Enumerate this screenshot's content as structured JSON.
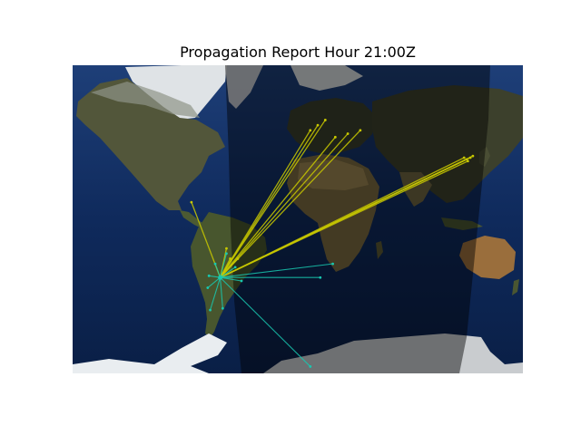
{
  "figure": {
    "title": "Propagation Report Hour 21:00Z"
  },
  "map": {
    "projection": "equirectangular",
    "lon_range": [
      -180,
      180
    ],
    "lat_range": [
      -90,
      90
    ],
    "basemap": "satellite (blue marble)",
    "night_terminator": true,
    "colors": {
      "ocean": "#0e2a5a",
      "land": "#5a5a38",
      "ice": "#f2f4f6",
      "night_shade": "#000000",
      "path_yellow": "#c8c800",
      "path_cyan": "#18c8b0"
    }
  },
  "chart_data": {
    "type": "propagation-paths",
    "hub": {
      "lon": -62,
      "lat": -34
    },
    "paths": [
      {
        "to": {
          "lon": 22,
          "lat": 58
        },
        "color": "yellow"
      },
      {
        "to": {
          "lon": 16,
          "lat": 55
        },
        "color": "yellow"
      },
      {
        "to": {
          "lon": 10,
          "lat": 52
        },
        "color": "yellow"
      },
      {
        "to": {
          "lon": 30,
          "lat": 48
        },
        "color": "yellow"
      },
      {
        "to": {
          "lon": 40,
          "lat": 50
        },
        "color": "yellow"
      },
      {
        "to": {
          "lon": 50,
          "lat": 52
        },
        "color": "yellow"
      },
      {
        "to": {
          "lon": 133,
          "lat": 36
        },
        "color": "yellow"
      },
      {
        "to": {
          "lon": 135,
          "lat": 35
        },
        "color": "yellow"
      },
      {
        "to": {
          "lon": 138,
          "lat": 36
        },
        "color": "yellow"
      },
      {
        "to": {
          "lon": 140,
          "lat": 37
        },
        "color": "yellow"
      },
      {
        "to": {
          "lon": 136,
          "lat": 34
        },
        "color": "yellow"
      },
      {
        "to": {
          "lon": -85,
          "lat": 10
        },
        "color": "yellow"
      },
      {
        "to": {
          "lon": -57,
          "lat": -17
        },
        "color": "yellow"
      },
      {
        "to": {
          "lon": -54,
          "lat": -23
        },
        "color": "yellow"
      },
      {
        "to": {
          "lon": -48,
          "lat": -23
        },
        "color": "yellow"
      },
      {
        "to": {
          "lon": 18,
          "lat": -34
        },
        "color": "cyan"
      },
      {
        "to": {
          "lon": 28,
          "lat": -26
        },
        "color": "cyan"
      },
      {
        "to": {
          "lon": 10,
          "lat": -86
        },
        "color": "cyan"
      },
      {
        "to": {
          "lon": -70,
          "lat": -53
        },
        "color": "cyan"
      },
      {
        "to": {
          "lon": -60,
          "lat": -52
        },
        "color": "cyan"
      },
      {
        "to": {
          "lon": -72,
          "lat": -40
        },
        "color": "cyan"
      },
      {
        "to": {
          "lon": -57,
          "lat": -20
        },
        "color": "cyan"
      },
      {
        "to": {
          "lon": -50,
          "lat": -28
        },
        "color": "cyan"
      },
      {
        "to": {
          "lon": -66,
          "lat": -26
        },
        "color": "cyan"
      },
      {
        "to": {
          "lon": -71,
          "lat": -33
        },
        "color": "cyan"
      },
      {
        "to": {
          "lon": -45,
          "lat": -36
        },
        "color": "cyan"
      }
    ]
  }
}
